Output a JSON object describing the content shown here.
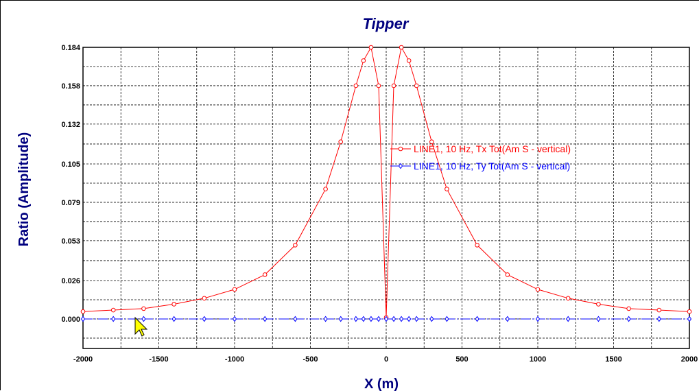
{
  "chart_data": {
    "type": "line",
    "title": "Tipper",
    "xlabel": "X (m)",
    "ylabel": "Ratio (Amplitude)",
    "xlim": [
      -2000,
      2000
    ],
    "ylim": [
      -0.02,
      0.184
    ],
    "xticks": [
      -2000,
      -1500,
      -1000,
      -500,
      0,
      500,
      1000,
      1500,
      2000
    ],
    "xtick_labels": [
      "-2000",
      "-1500",
      "-1000",
      "-500",
      "0",
      "500",
      "1000",
      "1500",
      "2000"
    ],
    "yticks": [
      0.0,
      0.026,
      0.053,
      0.079,
      0.105,
      0.132,
      0.158,
      0.184
    ],
    "ytick_labels": [
      "0.000",
      "0.026",
      "0.053",
      "0.079",
      "0.105",
      "0.132",
      "0.158",
      "0.184"
    ],
    "grid": true,
    "legend_position": "middle-right",
    "series": [
      {
        "name": "LINE1, 10 Hz, Tx Tot(Am S - vertical)",
        "color": "#ff0000",
        "marker": "circle",
        "x": [
          -2000,
          -1800,
          -1600,
          -1400,
          -1200,
          -1000,
          -800,
          -600,
          -400,
          -300,
          -200,
          -150,
          -100,
          -50,
          0,
          50,
          100,
          150,
          200,
          300,
          400,
          600,
          800,
          1000,
          1200,
          1400,
          1600,
          1800,
          2000
        ],
        "y": [
          0.005,
          0.006,
          0.007,
          0.01,
          0.014,
          0.02,
          0.03,
          0.05,
          0.088,
          0.12,
          0.158,
          0.175,
          0.184,
          0.158,
          0.001,
          0.158,
          0.184,
          0.175,
          0.158,
          0.12,
          0.088,
          0.05,
          0.03,
          0.02,
          0.014,
          0.01,
          0.007,
          0.006,
          0.005
        ]
      },
      {
        "name": "LINE1, 10 Hz, Ty Tot(Am S - vertical)",
        "color": "#0000ff",
        "marker": "diamond",
        "x": [
          -2000,
          -1800,
          -1600,
          -1400,
          -1200,
          -1000,
          -800,
          -600,
          -400,
          -300,
          -200,
          -150,
          -100,
          -50,
          0,
          50,
          100,
          150,
          200,
          300,
          400,
          600,
          800,
          1000,
          1200,
          1400,
          1600,
          1800,
          2000
        ],
        "y": [
          0,
          0,
          0,
          0,
          0,
          0,
          0,
          0,
          0,
          0,
          0,
          0,
          0,
          0,
          0,
          0,
          0,
          0,
          0,
          0,
          0,
          0,
          0,
          0,
          0,
          0,
          0,
          0,
          0
        ]
      }
    ]
  },
  "colors": {
    "title": "#00007f",
    "axis_label": "#00007f",
    "grid": "#000000",
    "cursor": "#ffff00"
  },
  "icons": {
    "cursor": "mouse-pointer-icon"
  }
}
